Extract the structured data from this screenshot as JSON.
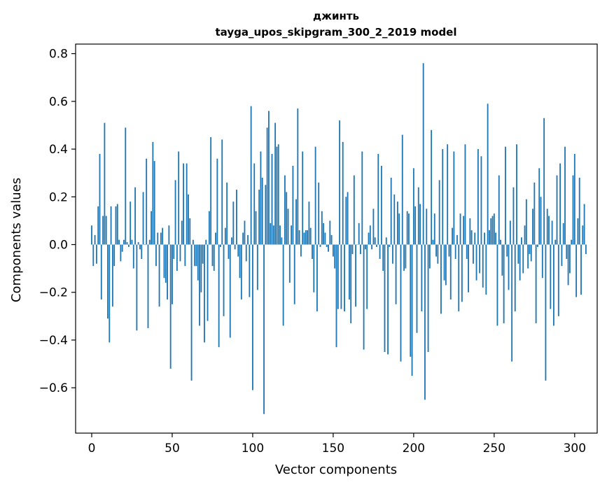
{
  "chart_data": {
    "type": "bar",
    "title": "джинть",
    "subtitle": "tayga_upos_skipgram_300_2_2019 model",
    "xlabel": "Vector components",
    "ylabel": "Components values",
    "xlim": [
      -10,
      314
    ],
    "ylim": [
      -0.79,
      0.84
    ],
    "xticks": [
      0,
      50,
      100,
      150,
      200,
      250,
      300
    ],
    "yticks": [
      -0.6,
      -0.4,
      -0.2,
      0.0,
      0.2,
      0.4,
      0.6,
      0.8
    ],
    "xtick_labels": [
      "0",
      "50",
      "100",
      "150",
      "200",
      "250",
      "300"
    ],
    "ytick_labels": [
      "−0.6",
      "−0.4",
      "−0.2",
      "0.0",
      "0.2",
      "0.4",
      "0.6",
      "0.8"
    ],
    "grid": false,
    "bar_color": "#1f77b4",
    "x_start": 0,
    "values": [
      0.08,
      -0.09,
      0.04,
      -0.08,
      0.16,
      0.38,
      -0.23,
      0.12,
      0.51,
      0.12,
      -0.31,
      -0.41,
      0.16,
      -0.26,
      -0.09,
      0.16,
      0.17,
      0.02,
      -0.07,
      -0.03,
      0.02,
      0.49,
      0.01,
      -0.01,
      0.18,
      0.02,
      -0.1,
      0.24,
      -0.36,
      0.01,
      -0.02,
      -0.06,
      0.22,
      0.0,
      0.36,
      -0.35,
      0.02,
      0.14,
      0.43,
      0.35,
      -0.09,
      0.05,
      -0.26,
      0.05,
      0.07,
      -0.14,
      -0.16,
      -0.23,
      0.08,
      -0.52,
      -0.25,
      -0.06,
      0.27,
      -0.11,
      0.39,
      -0.07,
      0.1,
      0.34,
      -0.09,
      0.34,
      0.21,
      0.11,
      -0.57,
      0.02,
      -0.09,
      -0.09,
      -0.15,
      -0.34,
      -0.2,
      -0.08,
      -0.41,
      0.02,
      -0.32,
      0.14,
      0.45,
      -0.09,
      -0.11,
      0.05,
      0.36,
      -0.43,
      -0.01,
      0.44,
      -0.3,
      0.07,
      0.26,
      -0.06,
      -0.39,
      0.03,
      0.18,
      -0.02,
      0.23,
      -0.05,
      -0.14,
      -0.23,
      0.05,
      0.1,
      -0.07,
      0.04,
      -0.22,
      0.58,
      -0.61,
      0.34,
      0.14,
      -0.19,
      0.23,
      0.39,
      0.28,
      -0.71,
      0.25,
      0.49,
      0.56,
      0.09,
      0.38,
      0.08,
      0.51,
      0.41,
      0.42,
      0.08,
      0.03,
      -0.34,
      0.29,
      0.22,
      0.15,
      -0.16,
      0.08,
      0.33,
      -0.25,
      0.19,
      0.57,
      0.06,
      -0.05,
      0.39,
      0.05,
      0.06,
      0.06,
      0.18,
      0.07,
      -0.06,
      -0.2,
      0.41,
      -0.28,
      0.26,
      -0.01,
      0.14,
      0.09,
      0.05,
      -0.01,
      -0.03,
      0.1,
      0.04,
      -0.05,
      -0.1,
      -0.43,
      -0.27,
      0.52,
      -0.27,
      0.43,
      -0.28,
      0.2,
      0.22,
      -0.23,
      -0.33,
      -0.04,
      0.29,
      -0.26,
      0.0,
      0.09,
      -0.04,
      0.39,
      -0.44,
      -0.02,
      -0.27,
      0.05,
      0.08,
      -0.02,
      0.15,
      0.03,
      -0.01,
      0.38,
      -0.06,
      0.33,
      -0.11,
      -0.45,
      0.03,
      -0.46,
      -0.01,
      0.28,
      -0.08,
      0.21,
      -0.25,
      0.18,
      0.13,
      -0.49,
      0.46,
      -0.11,
      -0.1,
      0.14,
      0.13,
      -0.47,
      -0.55,
      0.32,
      0.16,
      -0.37,
      0.24,
      0.17,
      -0.28,
      0.76,
      -0.65,
      0.15,
      -0.45,
      -0.1,
      0.48,
      0.02,
      0.13,
      -0.05,
      -0.08,
      0.27,
      -0.29,
      0.4,
      -0.15,
      -0.17,
      0.42,
      -0.05,
      -0.23,
      0.07,
      0.39,
      -0.06,
      0.04,
      -0.28,
      0.13,
      -0.24,
      0.12,
      0.42,
      -0.06,
      -0.2,
      0.11,
      0.06,
      -0.08,
      0.05,
      -0.15,
      0.4,
      -0.12,
      0.37,
      -0.18,
      0.05,
      -0.21,
      0.59,
      0.06,
      0.11,
      0.12,
      0.13,
      0.05,
      -0.34,
      0.29,
      0.02,
      -0.13,
      -0.33,
      0.41,
      -0.05,
      -0.19,
      0.1,
      -0.49,
      0.24,
      -0.28,
      0.42,
      -0.08,
      -0.15,
      0.03,
      -0.12,
      0.08,
      0.19,
      -0.1,
      -0.04,
      -0.07,
      0.15,
      0.26,
      -0.33,
      -0.01,
      0.32,
      0.2,
      -0.14,
      0.53,
      -0.57,
      0.15,
      0.12,
      -0.27,
      0.1,
      -0.34,
      0.02,
      0.29,
      -0.3,
      0.34,
      -0.09,
      0.09,
      0.41,
      -0.06,
      -0.17,
      -0.12,
      0.02,
      0.29,
      0.38,
      -0.22,
      0.11,
      0.28,
      -0.21,
      0.08,
      0.17,
      -0.04
    ]
  }
}
